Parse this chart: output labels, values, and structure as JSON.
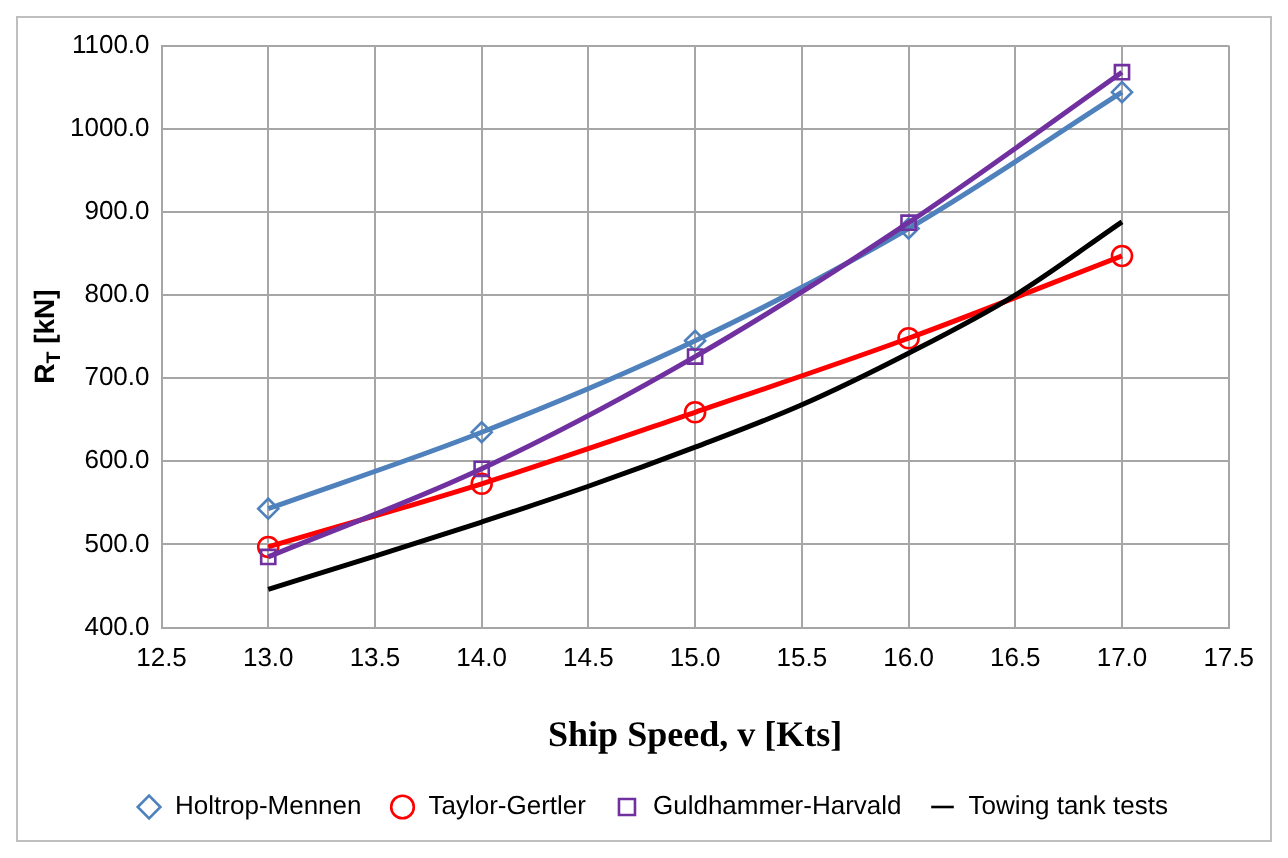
{
  "chart_data": {
    "type": "line",
    "xlabel": "Ship Speed, v [Kts]",
    "ylabel": "R$_{T}$ [kN]",
    "x": [
      13,
      14,
      15,
      16,
      17
    ],
    "series": [
      {
        "name": "Holtrop-Mennen",
        "color": "#4f81bd",
        "marker": "diamond",
        "values": [
          543,
          635,
          745,
          880,
          1044
        ]
      },
      {
        "name": "Taylor-Gertler",
        "color": "#ff0000",
        "marker": "circle",
        "values": [
          497,
          573,
          659,
          748,
          847
        ]
      },
      {
        "name": "Guldhammer-Harvald",
        "color": "#7030a0",
        "marker": "square",
        "values": [
          485,
          591,
          726,
          887,
          1068
        ]
      },
      {
        "name": "Towing tank tests",
        "color": "#000000",
        "marker": "none",
        "x": [
          13,
          13.5,
          14,
          14.5,
          15,
          15.5,
          16,
          16.5,
          17
        ],
        "values": [
          446,
          486,
          527,
          570,
          617,
          668,
          730,
          800,
          888
        ]
      }
    ],
    "xlim": [
      12.5,
      17.5
    ],
    "xticks": [
      {
        "value": 12.5,
        "label": "12.5"
      },
      {
        "value": 13,
        "label": "13.0"
      },
      {
        "value": 13.5,
        "label": "13.5"
      },
      {
        "value": 14,
        "label": "14.0"
      },
      {
        "value": 14.5,
        "label": "14.5"
      },
      {
        "value": 15,
        "label": "15.0"
      },
      {
        "value": 15.5,
        "label": "15.5"
      },
      {
        "value": 16,
        "label": "16.0"
      },
      {
        "value": 16.5,
        "label": "16.5"
      },
      {
        "value": 17,
        "label": "17.0"
      },
      {
        "value": 17.5,
        "label": "17.5"
      }
    ],
    "ylim": [
      400,
      1100
    ],
    "yticks": [
      {
        "value": 400,
        "label": "400.0"
      },
      {
        "value": 500,
        "label": "500.0"
      },
      {
        "value": 600,
        "label": "600.0"
      },
      {
        "value": 700,
        "label": "700.0"
      },
      {
        "value": 800,
        "label": "800.0"
      },
      {
        "value": 900,
        "label": "900.0"
      },
      {
        "value": 1000,
        "label": "1000.0"
      },
      {
        "value": 1100,
        "label": "1100.0"
      }
    ],
    "grid": true,
    "legend": "bottom",
    "line_style": "solid"
  }
}
